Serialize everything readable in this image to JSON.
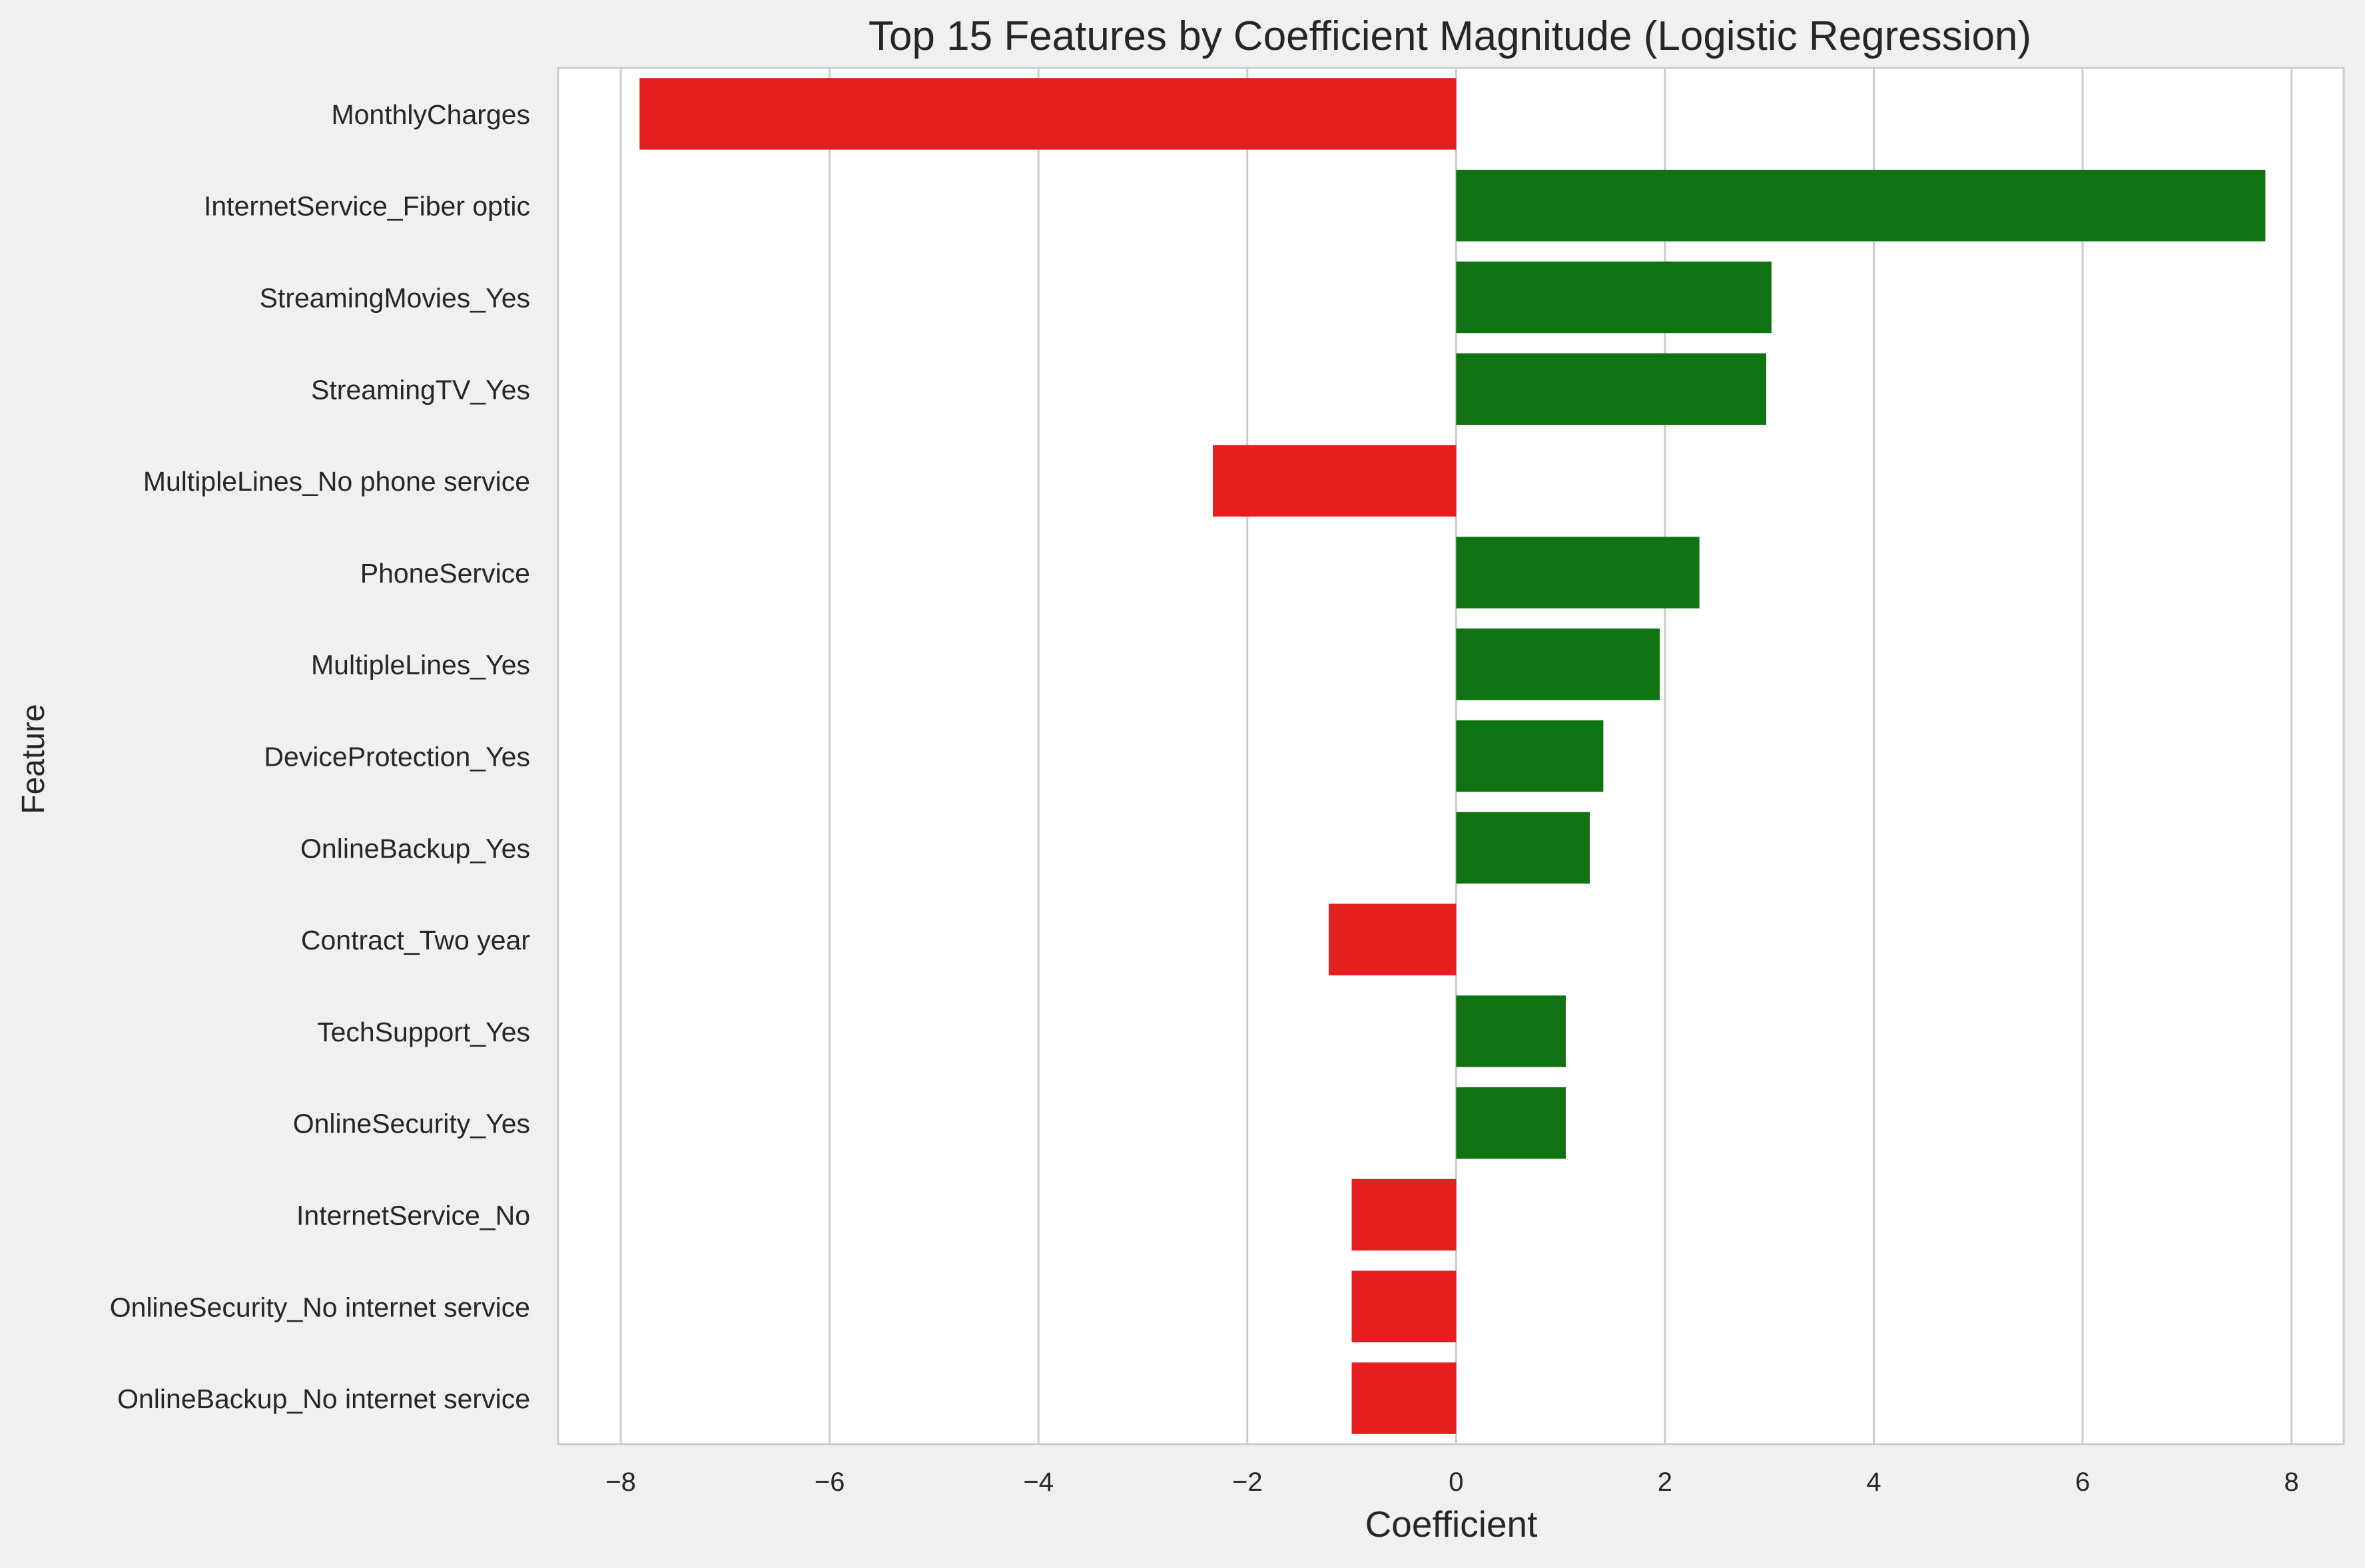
{
  "chart_data": {
    "type": "bar",
    "orientation": "horizontal",
    "title": "Top 15 Features by Coefficient Magnitude (Logistic Regression)",
    "xlabel": "Coefficient",
    "ylabel": "Feature",
    "xlim": [
      -8.6,
      8.5
    ],
    "xticks": [
      -8,
      -6,
      -4,
      -2,
      0,
      2,
      4,
      6,
      8
    ],
    "xtick_labels": [
      "−8",
      "−6",
      "−4",
      "−2",
      "0",
      "2",
      "4",
      "6",
      "8"
    ],
    "grid": "vertical",
    "colors": {
      "negative": "#e31f1f",
      "positive": "#0f7311",
      "background": "#f0f0f0",
      "plot_background": "#ffffff",
      "grid": "#cccccc"
    },
    "categories": [
      "MonthlyCharges",
      "InternetService_Fiber optic",
      "StreamingMovies_Yes",
      "StreamingTV_Yes",
      "MultipleLines_No phone service",
      "PhoneService",
      "MultipleLines_Yes",
      "DeviceProtection_Yes",
      "OnlineBackup_Yes",
      "Contract_Two year",
      "TechSupport_Yes",
      "OnlineSecurity_Yes",
      "InternetService_No",
      "OnlineSecurity_No internet service",
      "OnlineBackup_No internet service"
    ],
    "values": [
      -7.82,
      7.75,
      3.02,
      2.97,
      -2.33,
      2.33,
      1.95,
      1.41,
      1.28,
      -1.22,
      1.05,
      1.05,
      -1.0,
      -1.0,
      -1.0
    ]
  }
}
